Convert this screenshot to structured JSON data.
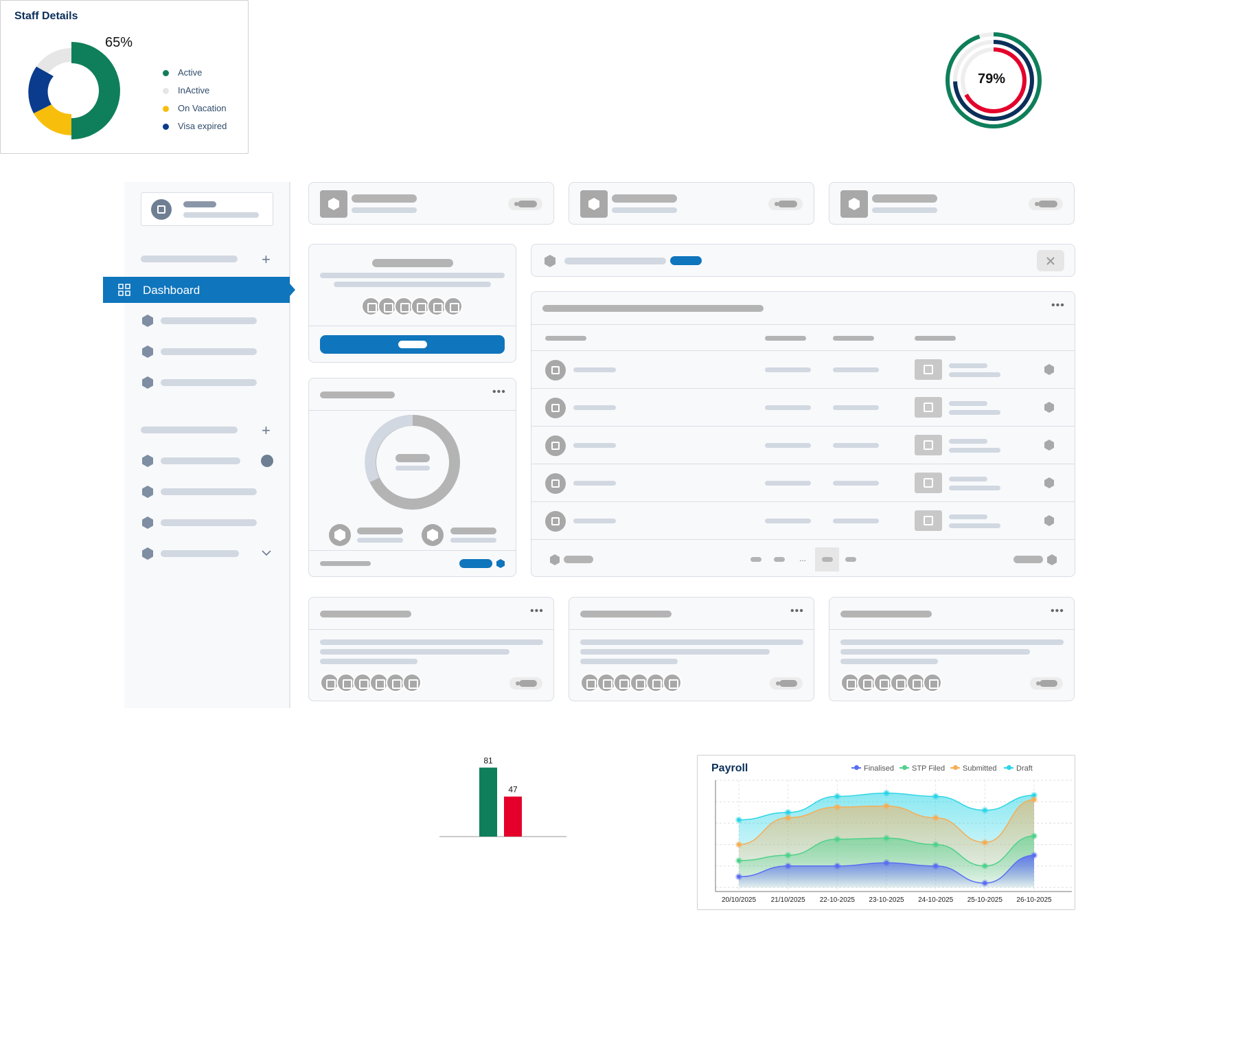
{
  "staff_details": {
    "title": "Staff Details",
    "percent": "65%",
    "legend": [
      {
        "label": "Active",
        "color": "#0e7f5a"
      },
      {
        "label": "InActive",
        "color": "#e6e6e6"
      },
      {
        "label": "On Vacation",
        "color": "#f8be0c"
      },
      {
        "label": "Visa expired",
        "color": "#0b3b8c"
      }
    ]
  },
  "radial": {
    "percent": "79%",
    "colors": [
      "#0e7f5a",
      "#0b2f5a",
      "#e4002b"
    ]
  },
  "sidebar": {
    "active_item": "Dashboard"
  },
  "bar_chart": {
    "values": [
      81,
      47
    ],
    "labels": [
      "81",
      "47"
    ],
    "colors": [
      "#0e7f5a",
      "#e4002b"
    ]
  },
  "payroll": {
    "title": "Payroll",
    "legend": [
      "Finalised",
      "STP Filed",
      "Submitted",
      "Draft"
    ]
  },
  "chart_data": [
    {
      "type": "pie",
      "title": "Staff Details",
      "categories": [
        "Active",
        "InActive",
        "On Vacation",
        "Visa expired"
      ],
      "values": [
        50,
        10,
        20,
        20
      ],
      "annotation": "65%"
    },
    {
      "type": "bar",
      "categories": [
        "",
        ""
      ],
      "values": [
        81,
        47
      ],
      "ylim": [
        0,
        100
      ]
    },
    {
      "type": "area",
      "title": "Payroll",
      "x": [
        "20/10/2025",
        "21/10/2025",
        "22-10-2025",
        "23-10-2025",
        "24-10-2025",
        "25-10-2025",
        "26-10-2025"
      ],
      "series": [
        {
          "name": "Finalised",
          "color": "#5b6ef2",
          "values": [
            1,
            2,
            2,
            2.3,
            2,
            0.4,
            3
          ]
        },
        {
          "name": "STP Filed",
          "color": "#4fd18b",
          "values": [
            2.5,
            3,
            4.5,
            4.6,
            4,
            2,
            4.8
          ]
        },
        {
          "name": "Submitted",
          "color": "#f6ad55",
          "values": [
            4,
            6.5,
            7.5,
            7.6,
            6.5,
            4.2,
            8.2
          ]
        },
        {
          "name": "Draft",
          "color": "#2cd5e6",
          "values": [
            6.3,
            7,
            8.5,
            8.8,
            8.5,
            7.2,
            8.6
          ]
        }
      ],
      "ylim": [
        0,
        10
      ],
      "grid": true,
      "legend": "top"
    }
  ]
}
